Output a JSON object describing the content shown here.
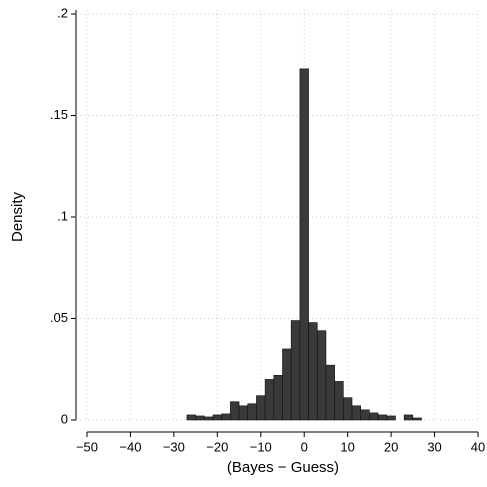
{
  "chart_data": {
    "type": "histogram",
    "x_label": "(Bayes − Guess)",
    "y_label": "Density",
    "bins": [
      -27,
      -25,
      -23,
      -21,
      -19,
      -17,
      -15,
      -13,
      -11,
      -9,
      -7,
      -5,
      -3,
      -1,
      1,
      3,
      5,
      7,
      9,
      11,
      13,
      15,
      17,
      19,
      21,
      23,
      25,
      27
    ],
    "values": [
      0.0025,
      0.002,
      0.0015,
      0.0025,
      0.003,
      0.009,
      0.007,
      0.008,
      0.012,
      0.02,
      0.022,
      0.035,
      0.049,
      0.173,
      0.048,
      0.044,
      0.027,
      0.019,
      0.011,
      0.007,
      0.005,
      0.0035,
      0.0025,
      0.002,
      0,
      0.0025,
      0.001
    ],
    "color": "#3a3a3a",
    "xlim": [
      -50,
      40
    ],
    "xticks": [
      {
        "value": -50,
        "label": "−50"
      },
      {
        "value": -40,
        "label": "−40"
      },
      {
        "value": -30,
        "label": "−30"
      },
      {
        "value": -20,
        "label": "−20"
      },
      {
        "value": -10,
        "label": "−10"
      },
      0,
      10,
      20,
      30,
      40
    ],
    "ylim": [
      0,
      0.2
    ],
    "yticks": [
      0,
      {
        "value": 0.05,
        "label": ".05"
      },
      {
        "value": 0.1,
        "label": ".1"
      },
      {
        "value": 0.15,
        "label": ".15"
      },
      {
        "value": 0.2,
        "label": ".2"
      }
    ],
    "grid": true
  }
}
